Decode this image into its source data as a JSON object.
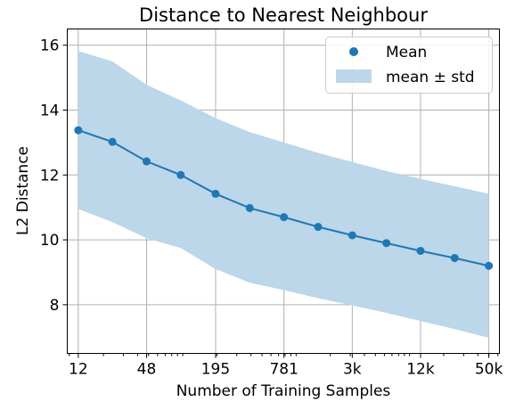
{
  "chart_data": {
    "type": "line",
    "title": "Distance to Nearest Neighbour",
    "xlabel": "Number of Training Samples",
    "ylabel": "L2 Distance",
    "x_scale": "log2",
    "x": [
      12,
      24,
      48,
      96,
      195,
      390,
      781,
      1562,
      3125,
      6250,
      12500,
      25000,
      50000
    ],
    "xticks": [
      {
        "value": 12,
        "label": "12"
      },
      {
        "value": 48,
        "label": "48"
      },
      {
        "value": 195,
        "label": "195"
      },
      {
        "value": 781,
        "label": "781"
      },
      {
        "value": 3125,
        "label": "3k"
      },
      {
        "value": 12500,
        "label": "12k"
      },
      {
        "value": 50000,
        "label": "50k"
      }
    ],
    "xlim": [
      9.6,
      62000
    ],
    "ylim": [
      6.5,
      16.5
    ],
    "yticks": [
      8,
      10,
      12,
      14,
      16
    ],
    "grid": true,
    "legend_position": "top-right",
    "color": "#1f77b4",
    "band_color": "#bcd6ea",
    "series": [
      {
        "name": "Mean",
        "values": [
          13.38,
          13.02,
          12.42,
          12.0,
          11.42,
          10.98,
          10.7,
          10.4,
          10.14,
          9.9,
          9.66,
          9.44,
          9.2
        ]
      }
    ],
    "band": {
      "name": "mean ± std",
      "lower": [
        10.95,
        10.55,
        10.05,
        9.75,
        9.1,
        8.68,
        8.45,
        8.2,
        7.98,
        7.75,
        7.5,
        7.25,
        6.98
      ],
      "upper": [
        15.82,
        15.5,
        14.78,
        14.3,
        13.75,
        13.32,
        13.0,
        12.68,
        12.4,
        12.12,
        11.88,
        11.65,
        11.42
      ]
    }
  }
}
